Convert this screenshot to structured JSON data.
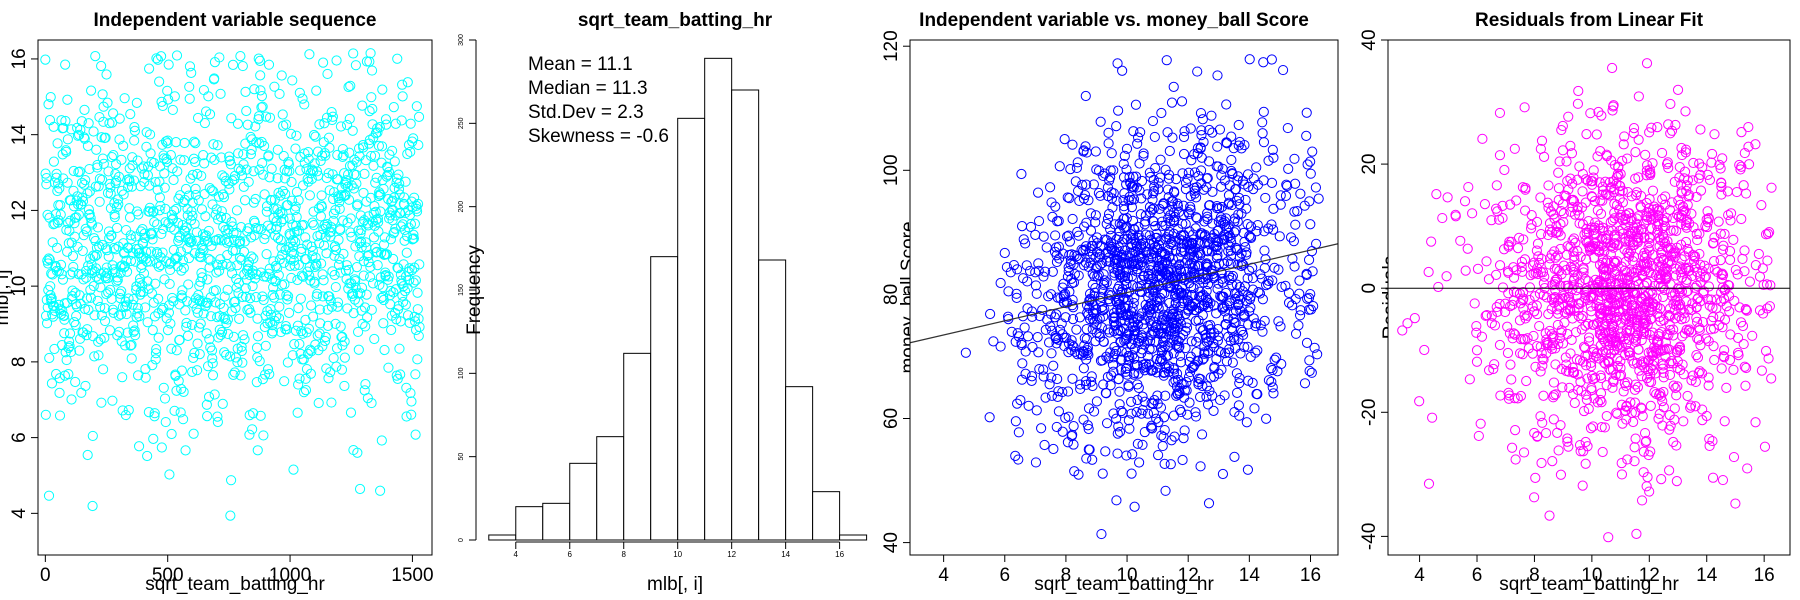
{
  "chart_data": [
    {
      "type": "scatter",
      "title": "Independent variable sequence",
      "xlabel": "sqrt_team_batting_hr",
      "ylabel": "mlb[, i]",
      "xlim": [
        -30,
        1580
      ],
      "ylim": [
        2.9,
        16.5
      ],
      "xticks": [
        0,
        500,
        1000,
        1500
      ],
      "yticks": [
        4,
        6,
        8,
        10,
        12,
        14,
        16
      ],
      "color": "#00ffff",
      "n_points": 1530,
      "grid": false
    },
    {
      "type": "bar",
      "subtype": "histogram",
      "title": "sqrt_team_batting_hr",
      "xlabel": "mlb[, i]",
      "ylabel": "Frequency",
      "bin_edges": [
        3,
        4,
        5,
        6,
        7,
        8,
        9,
        10,
        11,
        12,
        13,
        14,
        15,
        16,
        17
      ],
      "values": [
        3,
        20,
        22,
        46,
        62,
        112,
        170,
        253,
        289,
        270,
        168,
        92,
        29,
        3
      ],
      "xticks": [
        4,
        6,
        8,
        10,
        12,
        14,
        16
      ],
      "yticks": [
        0,
        50,
        100,
        150,
        200,
        250,
        300
      ],
      "ylim": [
        0,
        300
      ],
      "stats": [
        "Mean = 11.1",
        "Median = 11.3",
        "Std.Dev = 2.3",
        "Skewness = -0.6"
      ]
    },
    {
      "type": "scatter",
      "title": "Independent variable vs. money_ball Score",
      "xlabel": "sqrt_team_batting_hr",
      "ylabel": "money_ball Score",
      "xlim": [
        2.9,
        16.9
      ],
      "ylim": [
        38,
        121
      ],
      "xticks": [
        4,
        6,
        8,
        10,
        12,
        14,
        16
      ],
      "yticks": [
        40,
        60,
        80,
        100,
        120
      ],
      "color": "#0000ff",
      "fit_line": {
        "intercept": 68.9,
        "slope": 1.14
      },
      "n_points": 1600,
      "grid": false
    },
    {
      "type": "scatter",
      "title": "Residuals from Linear Fit",
      "xlabel": "sqrt_team_batting_hr",
      "ylabel": "Residuals",
      "xlim": [
        2.9,
        16.9
      ],
      "ylim": [
        -43,
        40
      ],
      "xticks": [
        4,
        6,
        8,
        10,
        12,
        14,
        16
      ],
      "yticks": [
        -40,
        -20,
        0,
        20,
        40
      ],
      "color": "#ff00ff",
      "hline": 0,
      "n_points": 1500,
      "grid": false
    }
  ]
}
